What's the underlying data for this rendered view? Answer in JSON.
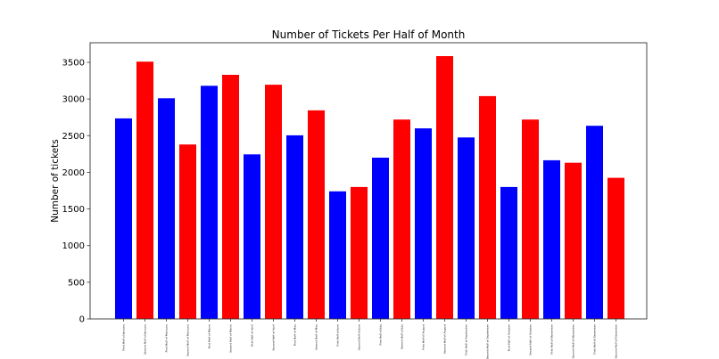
{
  "chart_data": {
    "type": "bar",
    "title": "Number of Tickets Per Half of Month",
    "xlabel": "",
    "ylabel": "Number of tickets",
    "ylim": [
      0,
      3750
    ],
    "yticks": [
      0,
      500,
      1000,
      1500,
      2000,
      2500,
      3000,
      3500
    ],
    "grid": false,
    "legend": null,
    "colors": {
      "first_half": "#0000ff",
      "second_half": "#ff0000"
    },
    "categories": [
      "First Half of January",
      "Second Half of January",
      "First Half of February",
      "Second Half of February",
      "First Half of March",
      "Second Half of March",
      "First Half of April",
      "Second Half of April",
      "First Half of May",
      "Second Half of May",
      "First Half of June",
      "Second Half of June",
      "First Half of July",
      "Second Half of July",
      "First Half of August",
      "Second Half of August",
      "First Half of September",
      "Second Half of September",
      "First Half of October",
      "Second Half of October",
      "First Half of November",
      "Second Half of November",
      "First Half of December",
      "Second Half of December"
    ],
    "values": [
      2735,
      3510,
      3010,
      2380,
      3180,
      3330,
      2245,
      3195,
      2505,
      2845,
      1740,
      1800,
      2200,
      2720,
      2600,
      3585,
      2475,
      3040,
      1800,
      2720,
      2165,
      2130,
      2635,
      1925
    ],
    "bar_colors": [
      "#0000ff",
      "#ff0000",
      "#0000ff",
      "#ff0000",
      "#0000ff",
      "#ff0000",
      "#0000ff",
      "#ff0000",
      "#0000ff",
      "#ff0000",
      "#0000ff",
      "#ff0000",
      "#0000ff",
      "#ff0000",
      "#0000ff",
      "#ff0000",
      "#0000ff",
      "#ff0000",
      "#0000ff",
      "#ff0000",
      "#0000ff",
      "#ff0000",
      "#0000ff",
      "#ff0000"
    ]
  }
}
